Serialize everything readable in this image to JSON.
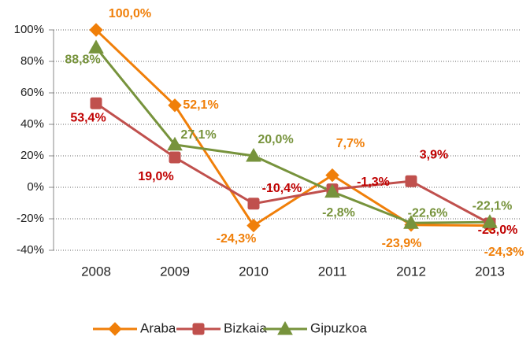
{
  "chart_data": {
    "type": "line",
    "categories": [
      "2008",
      "2009",
      "2010",
      "2011",
      "2012",
      "2013"
    ],
    "series": [
      {
        "name": "Araba",
        "color": "#f07f09",
        "values": [
          100.0,
          52.1,
          -24.3,
          7.7,
          -23.9,
          -24.3
        ],
        "value_labels": [
          "100,0%",
          "52,1%",
          "-24,3%",
          "7,7%",
          "-23,9%",
          "-24,3%"
        ]
      },
      {
        "name": "Bizkaia",
        "color": "#c0504d",
        "values": [
          53.4,
          19.0,
          -10.4,
          -1.3,
          3.9,
          -23.0
        ],
        "value_labels": [
          "53,4%",
          "19,0%",
          "-10,4%",
          "-1,3%",
          "3,9%",
          "-23,0%"
        ]
      },
      {
        "name": "Gipuzkoa",
        "color": "#77933c",
        "values": [
          88.8,
          27.1,
          20.0,
          -2.8,
          -22.6,
          -22.1
        ],
        "value_labels": [
          "88,8%",
          "27,1%",
          "20,0%",
          "-2,8%",
          "-22,6%",
          "-22,1%"
        ]
      }
    ],
    "ylim": [
      -40,
      100
    ],
    "yticks": [
      {
        "value": -40,
        "label": "-40%"
      },
      {
        "value": -20,
        "label": "-20%"
      },
      {
        "value": 0,
        "label": "0%"
      },
      {
        "value": 20,
        "label": "20%"
      },
      {
        "value": 40,
        "label": "40%"
      },
      {
        "value": 60,
        "label": "60%"
      },
      {
        "value": 80,
        "label": "80%"
      },
      {
        "value": 100,
        "label": "100%"
      }
    ],
    "grid": true,
    "legend": "bottom"
  }
}
